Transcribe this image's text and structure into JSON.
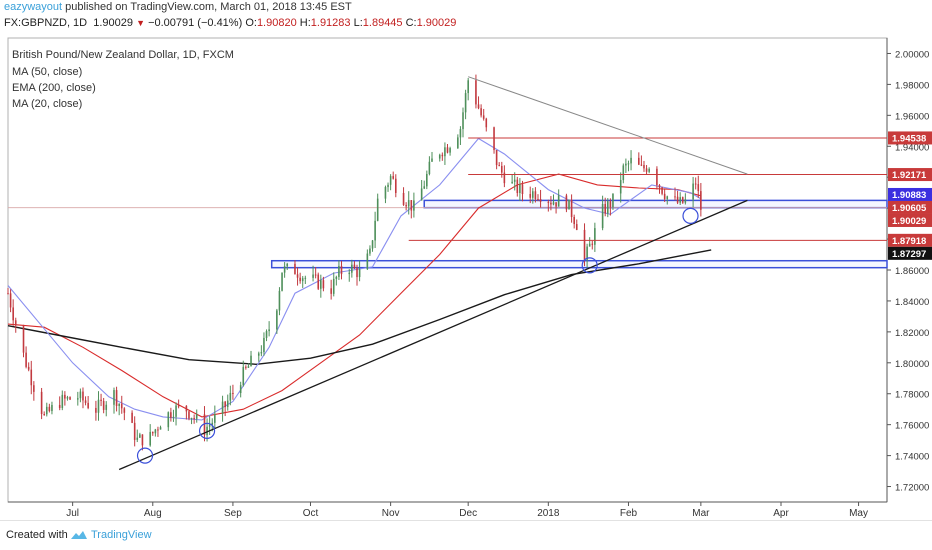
{
  "header": {
    "author": "eazywayout",
    "published": "published on TradingView.com, March 01, 2018 13:45 EST",
    "symbol": "FX:GBPNZD, 1D",
    "last": "1.90029",
    "change": "−0.00791 (−0.41%)",
    "o_label": "O:",
    "o": "1.90820",
    "h_label": "H:",
    "h": "1.91283",
    "l_label": "L:",
    "l": "1.89445",
    "c_label": "C:",
    "c": "1.90029"
  },
  "legend": {
    "title": "British Pound/New Zealand Dollar, 1D, FXCM",
    "items": [
      "MA (50, close)",
      "EMA (200, close)",
      "MA (20, close)"
    ]
  },
  "footer": {
    "created_label": "Created with",
    "brand": "TradingView"
  },
  "colors": {
    "up": "#4e8f5a",
    "down": "#c2393f",
    "ma50": "#d92b2b",
    "ema200": "#1a1a1a",
    "ma20": "#8a8ff0",
    "hline": "#c83a3a",
    "zone": "#3a4fd9",
    "trend": "#1a1a1a",
    "wedge": "#888888",
    "circle": "#3a4fd9",
    "axis": "#555555"
  },
  "chart_data": {
    "type": "candlestick",
    "title": "British Pound/New Zealand Dollar, 1D, FXCM",
    "ylim": [
      1.71,
      2.01
    ],
    "x_start": "2017-06-06",
    "x_end": "2018-05-12",
    "x_ticks": [
      {
        "label": "Jul",
        "date": "2017-07-01"
      },
      {
        "label": "Aug",
        "date": "2017-08-01"
      },
      {
        "label": "Sep",
        "date": "2017-09-01"
      },
      {
        "label": "Oct",
        "date": "2017-10-01"
      },
      {
        "label": "Nov",
        "date": "2017-11-01"
      },
      {
        "label": "Dec",
        "date": "2017-12-01"
      },
      {
        "label": "2018",
        "date": "2018-01-01"
      },
      {
        "label": "Feb",
        "date": "2018-02-01"
      },
      {
        "label": "Mar",
        "date": "2018-03-01"
      },
      {
        "label": "Apr",
        "date": "2018-04-01"
      },
      {
        "label": "May",
        "date": "2018-05-01"
      }
    ],
    "y_ticks": [
      "2.00000",
      "1.98000",
      "1.96000",
      "1.94000",
      "1.92000",
      "1.90000",
      "1.88000",
      "1.86000",
      "1.84000",
      "1.82000",
      "1.80000",
      "1.78000",
      "1.76000",
      "1.74000",
      "1.72000"
    ],
    "price_labels": [
      {
        "value": 1.94538,
        "text": "1.94538",
        "color": "#c83a3a"
      },
      {
        "value": 1.92171,
        "text": "1.92171",
        "color": "#c83a3a"
      },
      {
        "value": 1.90883,
        "text": "1.90883",
        "color": "#3b2fe0"
      },
      {
        "value": 1.90605,
        "text": "1.90605",
        "color": "#c83a3a"
      },
      {
        "value": 1.90029,
        "text": "1.90029",
        "color": "#c83a3a"
      },
      {
        "value": 1.87918,
        "text": "1.87918",
        "color": "#c83a3a"
      },
      {
        "value": 1.87297,
        "text": "1.87297",
        "color": "#111111"
      }
    ],
    "anchors": [
      [
        "2017-06-06",
        1.845
      ],
      [
        "2017-06-12",
        1.805
      ],
      [
        "2017-06-20",
        1.765
      ],
      [
        "2017-06-26",
        1.775
      ],
      [
        "2017-07-03",
        1.778
      ],
      [
        "2017-07-10",
        1.77
      ],
      [
        "2017-07-17",
        1.78
      ],
      [
        "2017-07-21",
        1.768
      ],
      [
        "2017-07-26",
        1.75
      ],
      [
        "2017-07-31",
        1.752
      ],
      [
        "2017-08-04",
        1.762
      ],
      [
        "2017-08-09",
        1.77
      ],
      [
        "2017-08-14",
        1.77
      ],
      [
        "2017-08-21",
        1.757
      ],
      [
        "2017-08-24",
        1.762
      ],
      [
        "2017-08-29",
        1.772
      ],
      [
        "2017-09-04",
        1.79
      ],
      [
        "2017-09-08",
        1.8
      ],
      [
        "2017-09-13",
        1.812
      ],
      [
        "2017-09-18",
        1.838
      ],
      [
        "2017-09-20",
        1.86
      ],
      [
        "2017-09-25",
        1.86
      ],
      [
        "2017-09-29",
        1.855
      ],
      [
        "2017-10-04",
        1.852
      ],
      [
        "2017-10-09",
        1.848
      ],
      [
        "2017-10-12",
        1.858
      ],
      [
        "2017-10-16",
        1.862
      ],
      [
        "2017-10-20",
        1.858
      ],
      [
        "2017-10-24",
        1.87
      ],
      [
        "2017-10-27",
        1.905
      ],
      [
        "2017-11-01",
        1.92
      ],
      [
        "2017-11-06",
        1.907
      ],
      [
        "2017-11-10",
        1.9
      ],
      [
        "2017-11-14",
        1.916
      ],
      [
        "2017-11-18",
        1.935
      ],
      [
        "2017-11-23",
        1.94
      ],
      [
        "2017-11-28",
        1.952
      ],
      [
        "2017-12-01",
        1.983
      ],
      [
        "2017-12-05",
        1.965
      ],
      [
        "2017-12-09",
        1.945
      ],
      [
        "2017-12-13",
        1.925
      ],
      [
        "2017-12-18",
        1.915
      ],
      [
        "2017-12-22",
        1.91
      ],
      [
        "2017-12-28",
        1.91
      ],
      [
        "2018-01-02",
        1.905
      ],
      [
        "2018-01-08",
        1.904
      ],
      [
        "2018-01-12",
        1.89
      ],
      [
        "2018-01-15",
        1.866
      ],
      [
        "2018-01-18",
        1.88
      ],
      [
        "2018-01-22",
        1.898
      ],
      [
        "2018-01-26",
        1.905
      ],
      [
        "2018-01-30",
        1.925
      ],
      [
        "2018-02-02",
        1.93
      ],
      [
        "2018-02-06",
        1.925
      ],
      [
        "2018-02-09",
        1.928
      ],
      [
        "2018-02-13",
        1.915
      ],
      [
        "2018-02-17",
        1.905
      ],
      [
        "2018-02-21",
        1.903
      ],
      [
        "2018-02-24",
        1.905
      ],
      [
        "2018-02-27",
        1.917
      ],
      [
        "2018-03-01",
        1.9
      ]
    ],
    "series": [
      {
        "name": "MA (50, close)",
        "color": "#d92b2b",
        "points": [
          [
            "2017-06-06",
            1.825
          ],
          [
            "2017-06-20",
            1.823
          ],
          [
            "2017-07-05",
            1.81
          ],
          [
            "2017-07-20",
            1.795
          ],
          [
            "2017-08-05",
            1.778
          ],
          [
            "2017-08-20",
            1.765
          ],
          [
            "2017-09-05",
            1.77
          ],
          [
            "2017-09-20",
            1.782
          ],
          [
            "2017-10-05",
            1.8
          ],
          [
            "2017-10-20",
            1.818
          ],
          [
            "2017-11-05",
            1.845
          ],
          [
            "2017-11-20",
            1.87
          ],
          [
            "2017-12-05",
            1.9
          ],
          [
            "2017-12-20",
            1.915
          ],
          [
            "2018-01-05",
            1.922
          ],
          [
            "2018-01-20",
            1.915
          ],
          [
            "2018-02-05",
            1.913
          ],
          [
            "2018-02-20",
            1.912
          ],
          [
            "2018-03-01",
            1.908
          ]
        ]
      },
      {
        "name": "EMA (200, close)",
        "color": "#1a1a1a",
        "points": [
          [
            "2017-06-06",
            1.824
          ],
          [
            "2017-06-25",
            1.818
          ],
          [
            "2017-07-20",
            1.81
          ],
          [
            "2017-08-15",
            1.802
          ],
          [
            "2017-09-10",
            1.799
          ],
          [
            "2017-10-01",
            1.803
          ],
          [
            "2017-10-25",
            1.812
          ],
          [
            "2017-11-20",
            1.828
          ],
          [
            "2017-12-15",
            1.844
          ],
          [
            "2018-01-10",
            1.857
          ],
          [
            "2018-02-05",
            1.864
          ],
          [
            "2018-03-05",
            1.873
          ]
        ]
      },
      {
        "name": "MA (20, close)",
        "color": "#8a8ff0",
        "points": [
          [
            "2017-06-06",
            1.85
          ],
          [
            "2017-06-20",
            1.822
          ],
          [
            "2017-07-01",
            1.8
          ],
          [
            "2017-07-15",
            1.778
          ],
          [
            "2017-07-25",
            1.77
          ],
          [
            "2017-08-05",
            1.765
          ],
          [
            "2017-08-20",
            1.763
          ],
          [
            "2017-09-01",
            1.775
          ],
          [
            "2017-09-15",
            1.81
          ],
          [
            "2017-09-25",
            1.845
          ],
          [
            "2017-10-10",
            1.858
          ],
          [
            "2017-10-25",
            1.862
          ],
          [
            "2017-11-05",
            1.895
          ],
          [
            "2017-11-20",
            1.915
          ],
          [
            "2017-12-05",
            1.945
          ],
          [
            "2017-12-15",
            1.935
          ],
          [
            "2018-01-01",
            1.912
          ],
          [
            "2018-01-15",
            1.9
          ],
          [
            "2018-01-25",
            1.896
          ],
          [
            "2018-02-10",
            1.915
          ],
          [
            "2018-02-25",
            1.91
          ],
          [
            "2018-03-01",
            1.906
          ]
        ]
      }
    ],
    "drawings": {
      "horizontal_lines": [
        {
          "value": 1.94538,
          "from": "2017-12-01",
          "to": "2018-06-01"
        },
        {
          "value": 1.92171,
          "from": "2017-12-01",
          "to": "2018-06-01"
        },
        {
          "value": 1.87918,
          "from": "2017-11-08",
          "to": "2018-06-01"
        }
      ],
      "zones": [
        {
          "from_value": 1.905,
          "to_value": 1.9003,
          "start": "2017-11-14",
          "end": "2018-06-01"
        },
        {
          "from_value": 1.866,
          "to_value": 1.8615,
          "start": "2017-09-16",
          "end": "2018-06-01"
        }
      ],
      "trendlines": [
        {
          "start": [
            "2017-07-19",
            1.731
          ],
          "end": [
            "2018-03-19",
            1.905
          ],
          "color": "#1a1a1a"
        },
        {
          "start": [
            "2017-12-01",
            1.985
          ],
          "end": [
            "2018-03-19",
            1.922
          ],
          "color": "#888888"
        }
      ],
      "circles": [
        {
          "date": "2017-07-29",
          "value": 1.74
        },
        {
          "date": "2017-08-22",
          "value": 1.756
        },
        {
          "date": "2018-01-17",
          "value": 1.863
        },
        {
          "date": "2018-02-25",
          "value": 1.895
        }
      ]
    }
  }
}
